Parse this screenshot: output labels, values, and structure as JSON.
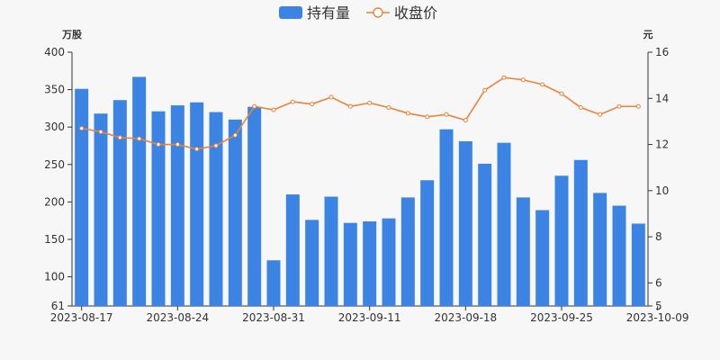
{
  "chart_data": {
    "type": "bar+line",
    "legend": {
      "position": "top-center",
      "items": [
        {
          "label": "持有量",
          "kind": "bar",
          "color": "#3b84e3"
        },
        {
          "label": "收盘价",
          "kind": "line",
          "color": "#e8843b"
        }
      ]
    },
    "left_axis": {
      "unit": "万股",
      "range": [
        61,
        400
      ],
      "ticks": [
        61,
        100,
        150,
        200,
        250,
        300,
        350,
        400
      ]
    },
    "right_axis": {
      "unit": "元",
      "range": [
        5,
        16
      ],
      "ticks": [
        5,
        6,
        8,
        10,
        12,
        14,
        16
      ]
    },
    "x_tick_labels": [
      {
        "index": 0,
        "label": "2023-08-17"
      },
      {
        "index": 5,
        "label": "2023-08-24"
      },
      {
        "index": 10,
        "label": "2023-08-31"
      },
      {
        "index": 15,
        "label": "2023-09-11"
      },
      {
        "index": 20,
        "label": "2023-09-18"
      },
      {
        "index": 25,
        "label": "2023-09-25"
      },
      {
        "index": 30,
        "label": "2023-10-09"
      }
    ],
    "series": [
      {
        "name": "持有量",
        "type": "bar",
        "axis": "left",
        "color": "#3b84e3",
        "values": [
          351,
          318,
          336,
          367,
          321,
          329,
          333,
          320,
          310,
          327,
          122,
          210,
          176,
          207,
          172,
          174,
          178,
          206,
          229,
          297,
          281,
          251,
          279,
          206,
          189,
          235,
          256,
          212,
          195,
          171
        ]
      },
      {
        "name": "收盘价",
        "type": "line",
        "axis": "right",
        "color": "#e8843b",
        "values": [
          12.7,
          12.55,
          12.3,
          12.25,
          12.0,
          12.0,
          11.8,
          11.95,
          12.4,
          13.65,
          13.5,
          13.85,
          13.75,
          14.05,
          13.65,
          13.8,
          13.6,
          13.35,
          13.2,
          13.3,
          13.05,
          14.35,
          14.9,
          14.8,
          14.6,
          14.2,
          13.6,
          13.3,
          13.65,
          13.65
        ]
      }
    ]
  }
}
